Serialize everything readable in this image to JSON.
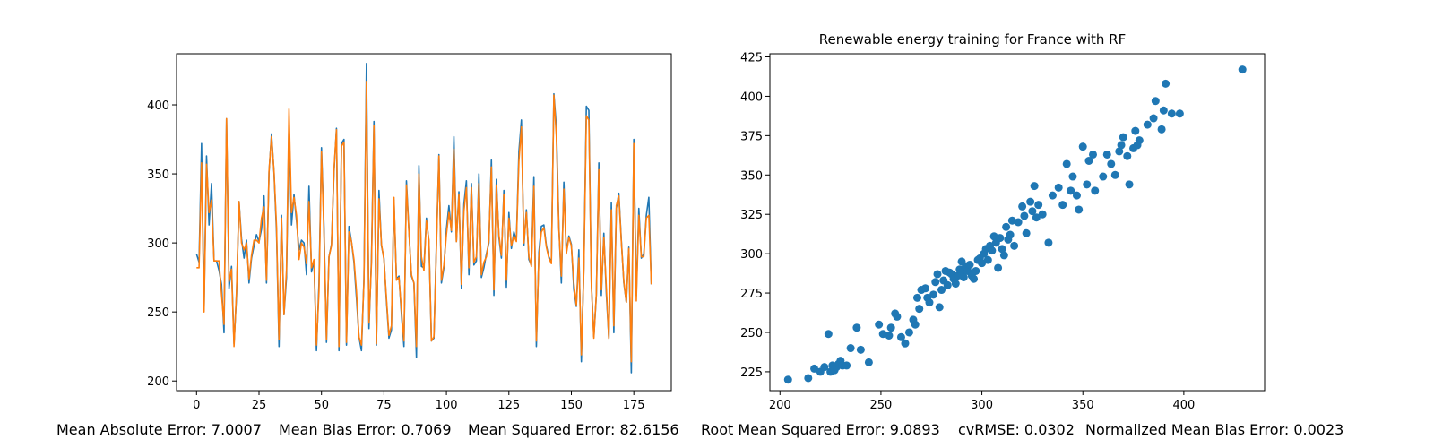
{
  "chart_data": [
    {
      "type": "line",
      "title": "",
      "xlabel": "",
      "ylabel": "",
      "xlim": [
        -8,
        190
      ],
      "ylim": [
        193,
        437
      ],
      "xticks": [
        0,
        25,
        50,
        75,
        100,
        125,
        150,
        175
      ],
      "yticks": [
        200,
        250,
        300,
        350,
        400
      ],
      "grid": false,
      "series": [
        {
          "name": "",
          "color": "#1f77b4",
          "values": [
            292,
            286,
            372,
            252,
            363,
            313,
            343,
            287,
            287,
            280,
            270,
            235,
            390,
            267,
            283,
            227,
            262,
            330,
            303,
            289,
            302,
            271,
            289,
            298,
            306,
            301,
            310,
            334,
            271,
            351,
            379,
            351,
            308,
            225,
            320,
            248,
            275,
            387,
            313,
            335,
            316,
            295,
            302,
            300,
            277,
            341,
            279,
            287,
            222,
            271,
            369,
            312,
            228,
            290,
            299,
            351,
            383,
            222,
            372,
            375,
            226,
            312,
            301,
            286,
            260,
            232,
            222,
            274,
            430,
            238,
            288,
            388,
            226,
            338,
            298,
            289,
            258,
            231,
            237,
            331,
            274,
            276,
            248,
            225,
            345,
            309,
            276,
            271,
            217,
            356,
            283,
            282,
            318,
            301,
            229,
            231,
            300,
            364,
            271,
            282,
            310,
            327,
            308,
            377,
            301,
            337,
            267,
            328,
            345,
            277,
            343,
            284,
            287,
            350,
            275,
            282,
            292,
            300,
            360,
            262,
            346,
            304,
            289,
            338,
            268,
            322,
            296,
            308,
            302,
            366,
            389,
            298,
            324,
            288,
            284,
            348,
            225,
            293,
            312,
            313,
            298,
            290,
            286,
            408,
            384,
            312,
            271,
            344,
            293,
            305,
            299,
            266,
            254,
            295,
            214,
            282,
            399,
            396,
            271,
            232,
            262,
            358,
            262,
            307,
            263,
            231,
            329,
            235,
            325,
            336,
            302,
            271,
            257,
            297,
            206,
            375,
            262,
            325,
            289,
            292,
            320,
            333,
            270
          ]
        },
        {
          "name": "",
          "color": "#ff7f0e",
          "values": [
            282,
            282,
            358,
            250,
            357,
            322,
            331,
            287,
            287,
            287,
            263,
            241,
            390,
            272,
            281,
            225,
            265,
            330,
            300,
            295,
            300,
            274,
            291,
            302,
            302,
            300,
            318,
            326,
            273,
            352,
            377,
            352,
            312,
            230,
            318,
            248,
            280,
            397,
            322,
            333,
            320,
            288,
            300,
            297,
            285,
            330,
            282,
            288,
            226,
            265,
            366,
            307,
            230,
            290,
            298,
            353,
            382,
            225,
            370,
            373,
            228,
            308,
            301,
            288,
            265,
            232,
            226,
            272,
            417,
            242,
            285,
            385,
            227,
            332,
            299,
            288,
            260,
            233,
            240,
            333,
            273,
            275,
            251,
            229,
            342,
            308,
            277,
            271,
            225,
            350,
            290,
            280,
            316,
            302,
            229,
            232,
            297,
            363,
            273,
            284,
            306,
            322,
            309,
            368,
            301,
            335,
            270,
            323,
            340,
            282,
            340,
            286,
            290,
            343,
            277,
            286,
            290,
            302,
            355,
            266,
            342,
            306,
            291,
            335,
            273,
            318,
            298,
            305,
            301,
            359,
            384,
            300,
            322,
            290,
            283,
            341,
            229,
            290,
            308,
            311,
            297,
            289,
            285,
            407,
            377,
            310,
            276,
            339,
            292,
            304,
            298,
            271,
            255,
            289,
            219,
            280,
            392,
            389,
            270,
            231,
            263,
            353,
            266,
            304,
            267,
            231,
            324,
            240,
            327,
            334,
            301,
            272,
            257,
            296,
            214,
            372,
            258,
            320,
            290,
            290,
            318,
            320,
            270
          ]
        }
      ]
    },
    {
      "type": "scatter",
      "title": "Renewable energy training for France with RF",
      "xlabel": "",
      "ylabel": "",
      "xlim": [
        195,
        440
      ],
      "ylim": [
        213,
        427
      ],
      "xticks": [
        200,
        250,
        300,
        350,
        400
      ],
      "yticks": [
        225,
        250,
        275,
        300,
        325,
        350,
        375,
        400,
        425
      ],
      "grid": false,
      "color": "#1f77b4",
      "points": [
        [
          204,
          220
        ],
        [
          214,
          221
        ],
        [
          217,
          227
        ],
        [
          220,
          225
        ],
        [
          222,
          228
        ],
        [
          224,
          249
        ],
        [
          225,
          225
        ],
        [
          226,
          229
        ],
        [
          227,
          226
        ],
        [
          228,
          228
        ],
        [
          229,
          230
        ],
        [
          230,
          232
        ],
        [
          231,
          229
        ],
        [
          233,
          229
        ],
        [
          235,
          240
        ],
        [
          238,
          253
        ],
        [
          240,
          239
        ],
        [
          244,
          231
        ],
        [
          249,
          255
        ],
        [
          251,
          249
        ],
        [
          254,
          248
        ],
        [
          255,
          253
        ],
        [
          257,
          262
        ],
        [
          258,
          260
        ],
        [
          260,
          247
        ],
        [
          262,
          243
        ],
        [
          264,
          250
        ],
        [
          266,
          258
        ],
        [
          267,
          255
        ],
        [
          268,
          272
        ],
        [
          269,
          265
        ],
        [
          270,
          277
        ],
        [
          272,
          278
        ],
        [
          273,
          272
        ],
        [
          274,
          269
        ],
        [
          276,
          274
        ],
        [
          277,
          282
        ],
        [
          278,
          287
        ],
        [
          279,
          266
        ],
        [
          280,
          277
        ],
        [
          281,
          283
        ],
        [
          282,
          289
        ],
        [
          283,
          280
        ],
        [
          284,
          288
        ],
        [
          285,
          287
        ],
        [
          286,
          284
        ],
        [
          287,
          281
        ],
        [
          288,
          286
        ],
        [
          289,
          290
        ],
        [
          290,
          288
        ],
        [
          290,
          295
        ],
        [
          291,
          285
        ],
        [
          292,
          292
        ],
        [
          293,
          289
        ],
        [
          294,
          293
        ],
        [
          295,
          286
        ],
        [
          296,
          284
        ],
        [
          297,
          289
        ],
        [
          298,
          296
        ],
        [
          299,
          297
        ],
        [
          300,
          294
        ],
        [
          301,
          300
        ],
        [
          302,
          303
        ],
        [
          303,
          296
        ],
        [
          304,
          305
        ],
        [
          305,
          302
        ],
        [
          306,
          311
        ],
        [
          307,
          307
        ],
        [
          308,
          291
        ],
        [
          309,
          310
        ],
        [
          310,
          303
        ],
        [
          311,
          299
        ],
        [
          312,
          317
        ],
        [
          313,
          309
        ],
        [
          314,
          312
        ],
        [
          315,
          321
        ],
        [
          316,
          305
        ],
        [
          318,
          320
        ],
        [
          320,
          330
        ],
        [
          321,
          324
        ],
        [
          322,
          313
        ],
        [
          324,
          333
        ],
        [
          325,
          327
        ],
        [
          326,
          343
        ],
        [
          327,
          323
        ],
        [
          328,
          331
        ],
        [
          330,
          325
        ],
        [
          333,
          307
        ],
        [
          335,
          337
        ],
        [
          338,
          342
        ],
        [
          340,
          331
        ],
        [
          342,
          357
        ],
        [
          344,
          340
        ],
        [
          345,
          349
        ],
        [
          347,
          337
        ],
        [
          348,
          328
        ],
        [
          350,
          368
        ],
        [
          352,
          344
        ],
        [
          353,
          359
        ],
        [
          355,
          363
        ],
        [
          356,
          340
        ],
        [
          360,
          349
        ],
        [
          362,
          363
        ],
        [
          364,
          357
        ],
        [
          366,
          350
        ],
        [
          368,
          365
        ],
        [
          369,
          369
        ],
        [
          370,
          374
        ],
        [
          372,
          362
        ],
        [
          373,
          344
        ],
        [
          375,
          367
        ],
        [
          376,
          378
        ],
        [
          377,
          369
        ],
        [
          378,
          372
        ],
        [
          382,
          382
        ],
        [
          385,
          386
        ],
        [
          386,
          397
        ],
        [
          389,
          379
        ],
        [
          390,
          391
        ],
        [
          391,
          408
        ],
        [
          394,
          389
        ],
        [
          398,
          389
        ],
        [
          429,
          417
        ]
      ]
    }
  ],
  "metrics": {
    "mae": "Mean Absolute Error: 7.0007",
    "mbe": "Mean Bias Error: 0.7069",
    "mse": "Mean Squared Error: 82.6156",
    "rmse": "Root Mean Squared Error: 9.0893",
    "cvrmse": "cvRMSE: 0.0302",
    "nmbe": "Normalized Mean Bias Error: 0.0023"
  }
}
